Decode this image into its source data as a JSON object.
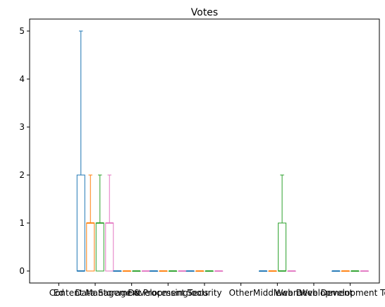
{
  "chart_data": {
    "type": "boxplot",
    "title": "Votes",
    "xlabel": "",
    "ylabel": "",
    "ylim": [
      -0.25,
      5.25
    ],
    "yticks": [
      0,
      1,
      2,
      3,
      4,
      5
    ],
    "grid": false,
    "categories": [
      "Ed",
      "Content Management",
      "Data Storage & Processing",
      "Development Tools",
      "Security",
      "Other",
      "Middleware",
      "Web Development",
      "Web Development Tools"
    ],
    "groups": [
      {
        "label": "Ed",
        "boxes": []
      },
      {
        "label": "Content Management",
        "boxes": [
          {
            "color": "#1f77b4",
            "min": 0,
            "q1": 0,
            "median": 0,
            "q3": 2,
            "max": 5
          },
          {
            "color": "#ff7f0e",
            "min": 0,
            "q1": 0,
            "median": 1,
            "q3": 1,
            "max": 2
          },
          {
            "color": "#2ca02c",
            "min": 0,
            "q1": 0,
            "median": 1,
            "q3": 1,
            "max": 2
          },
          {
            "color": "#e377c2",
            "min": 0,
            "q1": 0,
            "median": 1,
            "q3": 1,
            "max": 2
          }
        ]
      },
      {
        "label": "Data Storage & Processing",
        "boxes": [
          {
            "color": "#1f77b4",
            "min": 0,
            "q1": 0,
            "median": 0,
            "q3": 0,
            "max": 0
          },
          {
            "color": "#ff7f0e",
            "min": 0,
            "q1": 0,
            "median": 0,
            "q3": 0,
            "max": 0
          },
          {
            "color": "#2ca02c",
            "min": 0,
            "q1": 0,
            "median": 0,
            "q3": 0,
            "max": 0
          },
          {
            "color": "#e377c2",
            "min": 0,
            "q1": 0,
            "median": 0,
            "q3": 0,
            "max": 0
          }
        ]
      },
      {
        "label": "Development Tools",
        "boxes": [
          {
            "color": "#1f77b4",
            "min": 0,
            "q1": 0,
            "median": 0,
            "q3": 0,
            "max": 0
          },
          {
            "color": "#ff7f0e",
            "min": 0,
            "q1": 0,
            "median": 0,
            "q3": 0,
            "max": 0
          },
          {
            "color": "#2ca02c",
            "min": 0,
            "q1": 0,
            "median": 0,
            "q3": 0,
            "max": 0
          },
          {
            "color": "#e377c2",
            "min": 0,
            "q1": 0,
            "median": 0,
            "q3": 0,
            "max": 0
          }
        ]
      },
      {
        "label": "Security",
        "boxes": [
          {
            "color": "#1f77b4",
            "min": 0,
            "q1": 0,
            "median": 0,
            "q3": 0,
            "max": 0
          },
          {
            "color": "#ff7f0e",
            "min": 0,
            "q1": 0,
            "median": 0,
            "q3": 0,
            "max": 0
          },
          {
            "color": "#2ca02c",
            "min": 0,
            "q1": 0,
            "median": 0,
            "q3": 0,
            "max": 0
          },
          {
            "color": "#e377c2",
            "min": 0,
            "q1": 0,
            "median": 0,
            "q3": 0,
            "max": 0
          }
        ]
      },
      {
        "label": "Other",
        "boxes": []
      },
      {
        "label": "Middleware",
        "boxes": [
          {
            "color": "#1f77b4",
            "min": 0,
            "q1": 0,
            "median": 0,
            "q3": 0,
            "max": 0
          },
          {
            "color": "#ff7f0e",
            "min": 0,
            "q1": 0,
            "median": 0,
            "q3": 0,
            "max": 0
          },
          {
            "color": "#2ca02c",
            "min": 0,
            "q1": 0,
            "median": 0,
            "q3": 1,
            "max": 2
          },
          {
            "color": "#e377c2",
            "min": 0,
            "q1": 0,
            "median": 0,
            "q3": 0,
            "max": 0
          }
        ]
      },
      {
        "label": "Web Development",
        "boxes": []
      },
      {
        "label": "Web Development Tools",
        "boxes": [
          {
            "color": "#1f77b4",
            "min": 0,
            "q1": 0,
            "median": 0,
            "q3": 0,
            "max": 0
          },
          {
            "color": "#ff7f0e",
            "min": 0,
            "q1": 0,
            "median": 0,
            "q3": 0,
            "max": 0
          },
          {
            "color": "#2ca02c",
            "min": 0,
            "q1": 0,
            "median": 0,
            "q3": 0,
            "max": 0
          },
          {
            "color": "#e377c2",
            "min": 0,
            "q1": 0,
            "median": 0,
            "q3": 0,
            "max": 0
          }
        ]
      }
    ],
    "colors": {
      "blue": "#1f77b4",
      "orange": "#ff7f0e",
      "green": "#2ca02c",
      "pink": "#e377c2"
    }
  }
}
